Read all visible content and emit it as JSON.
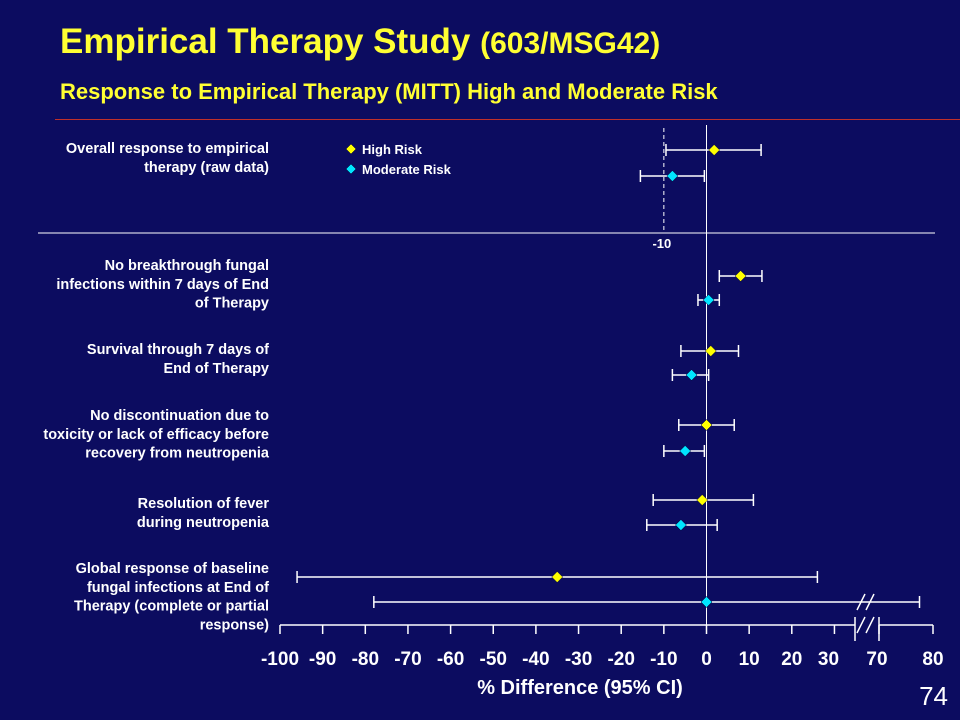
{
  "header": {
    "title_main": "Empirical Therapy Study ",
    "title_id": "(603/MSG42)",
    "subtitle": "Response to Empirical Therapy (MITT) High and Moderate Risk"
  },
  "page_number": "74",
  "chart_data": {
    "type": "forest",
    "xlabel": "% Difference (95% CI)",
    "xlim": [
      -100,
      80
    ],
    "axis_break": {
      "from": 30,
      "to": 70
    },
    "x_ticks": [
      "-100",
      "-90",
      "-80",
      "-70",
      "-60",
      "-50",
      "-40",
      "-30",
      "-20",
      "-10",
      "0",
      "10",
      "20",
      "30",
      "70",
      "80"
    ],
    "reference_line": {
      "x": -10,
      "label": "-10"
    },
    "legend": {
      "placement": "top-left",
      "entries": [
        {
          "name": "High Risk",
          "color": "#ffff00"
        },
        {
          "name": "Moderate Risk",
          "color": "#00e5ff"
        }
      ]
    },
    "categories": [
      {
        "label_lines": [
          "Overall response to empirical",
          "therapy (raw data)"
        ]
      },
      {
        "label_lines": [
          "No breakthrough fungal",
          "infections within 7 days of End",
          "of Therapy"
        ]
      },
      {
        "label_lines": [
          "Survival through 7 days of",
          "End of Therapy"
        ]
      },
      {
        "label_lines": [
          "No discontinuation due to",
          "toxicity or lack of efficacy before",
          "recovery from neutropenia"
        ]
      },
      {
        "label_lines": [
          "Resolution of fever",
          "during neutropenia"
        ]
      },
      {
        "label_lines": [
          "Global response of baseline",
          "fungal infections at End of",
          "Therapy (complete or partial",
          "response)"
        ]
      }
    ],
    "series": [
      {
        "name": "High Risk",
        "color": "#ffff00",
        "points": [
          {
            "estimate": 1.8,
            "lower": -9.5,
            "upper": 12.8
          },
          {
            "estimate": 8.0,
            "lower": 3.0,
            "upper": 13.0
          },
          {
            "estimate": 1.0,
            "lower": -6.0,
            "upper": 7.5
          },
          {
            "estimate": 0.0,
            "lower": -6.5,
            "upper": 6.5
          },
          {
            "estimate": -1.0,
            "lower": -12.5,
            "upper": 11.0
          },
          {
            "estimate": -35.0,
            "lower": -96.0,
            "upper": 26.0
          }
        ]
      },
      {
        "name": "Moderate Risk",
        "color": "#00e5ff",
        "points": [
          {
            "estimate": -8.0,
            "lower": -15.5,
            "upper": -0.5
          },
          {
            "estimate": 0.5,
            "lower": -2.0,
            "upper": 3.0
          },
          {
            "estimate": -3.5,
            "lower": -8.0,
            "upper": 0.5
          },
          {
            "estimate": -5.0,
            "lower": -10.0,
            "upper": -0.5
          },
          {
            "estimate": -6.0,
            "lower": -14.0,
            "upper": 2.5
          },
          {
            "estimate": 0.0,
            "lower": -78.0,
            "upper": 77.5
          }
        ]
      }
    ]
  }
}
